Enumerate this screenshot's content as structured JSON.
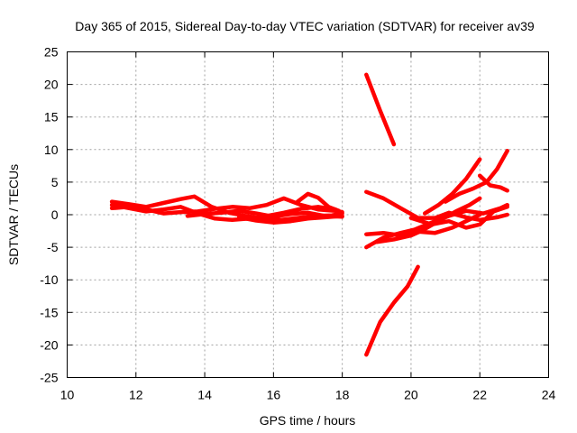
{
  "chart_data": {
    "type": "line",
    "title": "Day 365 of 2015, Sidereal Day-to-day VTEC variation (SDTVAR) for receiver av39",
    "xlabel": "GPS time / hours",
    "ylabel": "SDTVAR / TECUs",
    "xlim": [
      10,
      24
    ],
    "ylim": [
      -25,
      25
    ],
    "x_ticks": [
      10,
      12,
      14,
      16,
      18,
      20,
      22,
      24
    ],
    "y_ticks": [
      25,
      20,
      15,
      10,
      5,
      0,
      -5,
      -10,
      -15,
      -20,
      -25
    ],
    "grid": true,
    "legend": "none",
    "color": "#ff0000",
    "series": [
      {
        "x": [
          11.3,
          11.8,
          12.3,
          12.8,
          13.3,
          13.7,
          14.2,
          14.7,
          15.2,
          15.7,
          16.2,
          16.7,
          17.2,
          17.7,
          18.0
        ],
        "y": [
          2.0,
          1.6,
          1.2,
          1.8,
          2.4,
          2.8,
          1.2,
          0.3,
          -0.2,
          -0.6,
          -0.8,
          -0.5,
          -0.2,
          -0.1,
          0.2
        ]
      },
      {
        "x": [
          11.3,
          11.8,
          12.3,
          12.8,
          13.3,
          13.8,
          14.3,
          14.8,
          15.3,
          15.8,
          16.3,
          16.8,
          17.3,
          17.8,
          18.0
        ],
        "y": [
          1.0,
          1.2,
          0.8,
          0.2,
          0.4,
          0.5,
          0.9,
          1.2,
          1.0,
          1.5,
          2.5,
          1.5,
          0.8,
          0.6,
          0.4
        ]
      },
      {
        "x": [
          11.3,
          11.8,
          12.3,
          12.8,
          13.3,
          13.8,
          14.3,
          14.8,
          15.3,
          15.8,
          16.3,
          16.8,
          17.3,
          17.8
        ],
        "y": [
          1.5,
          1.0,
          0.5,
          0.8,
          1.2,
          0.2,
          -0.6,
          -0.8,
          -0.6,
          -0.2,
          0.3,
          0.9,
          1.2,
          0.8
        ]
      },
      {
        "x": [
          13.5,
          14.0,
          14.5,
          15.0,
          15.5,
          16.0,
          16.5,
          17.0,
          17.5,
          18.0
        ],
        "y": [
          -0.2,
          0.1,
          0.3,
          0.6,
          0.2,
          -0.3,
          0.1,
          0.3,
          -0.2,
          -0.3
        ]
      },
      {
        "x": [
          15.0,
          15.5,
          16.0,
          16.5,
          17.0,
          17.5,
          18.0
        ],
        "y": [
          -0.4,
          -0.9,
          -1.2,
          -1.0,
          -0.6,
          -0.4,
          -0.2
        ]
      },
      {
        "x": [
          16.7,
          17.0,
          17.3,
          17.6,
          17.9
        ],
        "y": [
          2.0,
          3.2,
          2.6,
          1.2,
          0.6
        ]
      },
      {
        "x": [
          18.7,
          19.1,
          19.5
        ],
        "y": [
          21.5,
          16.0,
          10.8
        ]
      },
      {
        "x": [
          18.7,
          19.1,
          19.5,
          19.9,
          20.2
        ],
        "y": [
          -21.5,
          -16.5,
          -13.5,
          -11.0,
          -8.0
        ]
      },
      {
        "x": [
          18.7,
          19.2,
          19.7,
          20.2,
          20.7,
          21.1,
          21.6,
          22.0,
          22.5,
          22.8
        ],
        "y": [
          3.5,
          2.5,
          1.0,
          -0.5,
          -0.5,
          0.3,
          -0.4,
          -0.8,
          -0.4,
          0.0
        ]
      },
      {
        "x": [
          18.7,
          19.2,
          19.7,
          20.1,
          20.6,
          21.1,
          21.6,
          22.1,
          22.6,
          22.8
        ],
        "y": [
          -5.0,
          -3.5,
          -2.8,
          -2.3,
          -1.2,
          -0.2,
          0.6,
          0.2,
          1.0,
          1.5
        ]
      },
      {
        "x": [
          18.7,
          19.2,
          19.7,
          20.2,
          20.7,
          21.2,
          21.6,
          22.0
        ],
        "y": [
          -3.0,
          -2.8,
          -3.2,
          -2.6,
          -2.8,
          -2.0,
          -1.0,
          0.0
        ]
      },
      {
        "x": [
          19.0,
          19.5,
          20.0,
          20.3,
          20.8,
          21.3,
          21.7,
          22.0
        ],
        "y": [
          -4.2,
          -3.8,
          -3.2,
          -2.5,
          -1.0,
          0.5,
          1.5,
          2.5
        ]
      },
      {
        "x": [
          20.0,
          20.6,
          21.1,
          21.6,
          22.0,
          22.4,
          22.8
        ],
        "y": [
          -0.5,
          -1.5,
          -1.0,
          -2.0,
          -1.5,
          0.5,
          1.2
        ]
      },
      {
        "x": [
          20.4,
          20.8,
          21.2,
          21.6,
          22.0
        ],
        "y": [
          0.2,
          1.5,
          3.2,
          5.5,
          8.5
        ]
      },
      {
        "x": [
          21.0,
          21.4,
          21.8,
          22.2,
          22.5,
          22.8
        ],
        "y": [
          2.0,
          3.2,
          4.0,
          5.0,
          7.0,
          9.8
        ]
      },
      {
        "x": [
          22.0,
          22.3,
          22.6,
          22.8
        ],
        "y": [
          6.0,
          4.5,
          4.2,
          3.7
        ]
      }
    ]
  }
}
